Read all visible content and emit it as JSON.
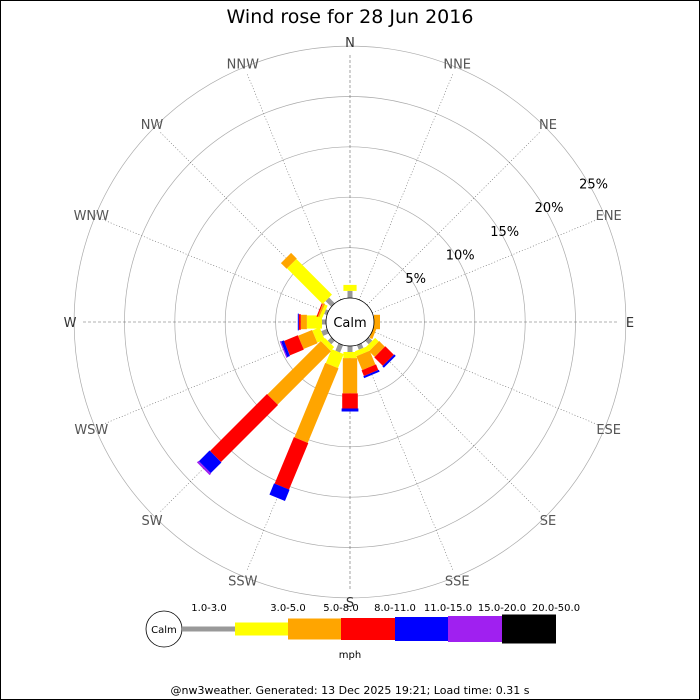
{
  "chart_data": {
    "type": "windrose",
    "title": "Wind rose for 28 Jun 2016",
    "directions": [
      "N",
      "NNE",
      "NE",
      "ENE",
      "E",
      "ESE",
      "SE",
      "SSE",
      "S",
      "SSW",
      "SW",
      "WSW",
      "W",
      "WNW",
      "NW",
      "NNW"
    ],
    "rings": [
      {
        "value": 5,
        "label": "5%"
      },
      {
        "value": 10,
        "label": "10%"
      },
      {
        "value": 15,
        "label": "15%"
      },
      {
        "value": 20,
        "label": "20%"
      },
      {
        "value": 25,
        "label": "25%"
      }
    ],
    "rmax": 26,
    "calm_label": "Calm",
    "bins": [
      {
        "label": "1.0-3.0",
        "color": "#999999"
      },
      {
        "label": "3.0-5.0",
        "color": "#ffff00"
      },
      {
        "label": "5.0-8.0",
        "color": "#ffa500"
      },
      {
        "label": "8.0-11.0",
        "color": "#ff0000"
      },
      {
        "label": "11.0-15.0",
        "color": "#0000ff"
      },
      {
        "label": "15.0-20.0",
        "color": "#a020f0"
      },
      {
        "label": "20.0-50.0",
        "color": "#000000"
      }
    ],
    "unit": "mph",
    "frequencies": {
      "N": [
        0.7,
        0.6,
        0,
        0,
        0,
        0,
        0
      ],
      "NNE": [
        0,
        0,
        0,
        0,
        0,
        0,
        0
      ],
      "NE": [
        0,
        0,
        0,
        0,
        0,
        0,
        0
      ],
      "ENE": [
        0,
        0,
        0,
        0,
        0,
        0,
        0
      ],
      "E": [
        0,
        0,
        0.6,
        0,
        0,
        0,
        0
      ],
      "ESE": [
        0,
        0,
        0.3,
        0,
        0,
        0,
        0
      ],
      "SE": [
        0.5,
        0.5,
        0.8,
        1.2,
        0.2,
        0,
        0
      ],
      "SSE": [
        0.5,
        0.5,
        1.5,
        0.6,
        0.2,
        0,
        0
      ],
      "S": [
        0.6,
        0.6,
        3.5,
        1.5,
        0.3,
        0,
        0
      ],
      "SSW": [
        0.8,
        1.5,
        8.0,
        5.0,
        1.2,
        0,
        0
      ],
      "SW": [
        0.5,
        0.5,
        7.5,
        8.0,
        1.5,
        0.2,
        0
      ],
      "WSW": [
        0.6,
        0.8,
        1.5,
        1.5,
        0.3,
        0.1,
        0
      ],
      "W": [
        0.4,
        1.5,
        0.6,
        0.2,
        0.1,
        0,
        0
      ],
      "WNW": [
        0.3,
        0.3,
        0.2,
        0.1,
        0,
        0,
        0
      ],
      "NW": [
        0.8,
        5.0,
        0.8,
        0,
        0,
        0,
        0
      ],
      "NNW": [
        0,
        0,
        0,
        0,
        0,
        0,
        0
      ]
    }
  },
  "footer": "@nw3weather. Generated: 13 Dec 2025 19:21; Load time: 0.31 s"
}
